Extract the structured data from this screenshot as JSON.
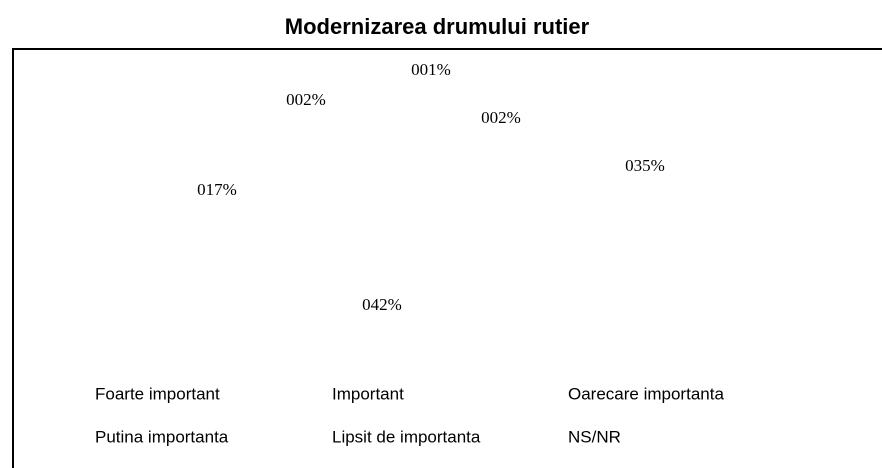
{
  "chart_data": {
    "type": "pie",
    "title": "Modernizarea drumului rutier",
    "categories": [
      "Foarte important",
      "Important",
      "Oarecare importanta",
      "Putina importanta",
      "Lipsit de importanta",
      "NS/NR"
    ],
    "values": [
      35,
      42,
      17,
      2,
      1,
      2
    ],
    "value_labels": [
      "035%",
      "042%",
      "017%",
      "002%",
      "001%",
      "002%"
    ]
  }
}
